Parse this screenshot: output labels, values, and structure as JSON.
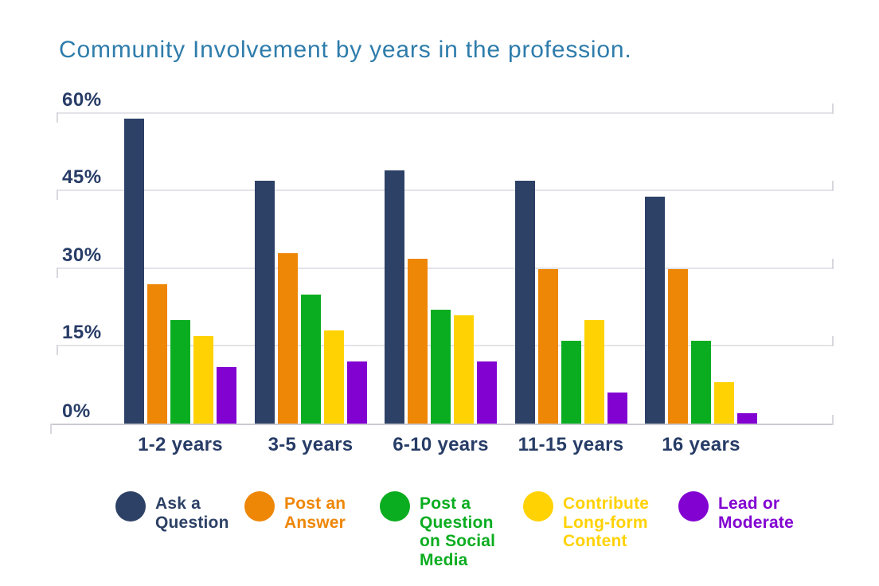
{
  "chart_data": {
    "type": "bar",
    "title": "Community Involvement by years in the profession.",
    "categories": [
      "1-2 years",
      "3-5 years",
      "6-10 years",
      "11-15 years",
      "16 years"
    ],
    "series": [
      {
        "name": "Ask a Question",
        "color": "#2d4166",
        "values": [
          59,
          47,
          49,
          47,
          44
        ]
      },
      {
        "name": "Post an Answer",
        "color": "#ee8606",
        "values": [
          27,
          33,
          32,
          30,
          30
        ]
      },
      {
        "name": "Post a Question on Social Media",
        "color": "#0bad20",
        "values": [
          20,
          25,
          22,
          16,
          16
        ]
      },
      {
        "name": "Contribute Long-form Content",
        "color": "#ffd204",
        "values": [
          17,
          18,
          21,
          20,
          8
        ]
      },
      {
        "name": "Lead or Moderate",
        "color": "#8202d1",
        "values": [
          11,
          12,
          12,
          6,
          2
        ]
      }
    ],
    "ylabel": "",
    "xlabel": "",
    "ylim": [
      0,
      60
    ],
    "y_ticks": [
      "60%",
      "45%",
      "30%",
      "15%",
      "0%"
    ],
    "y_tick_values": [
      60,
      45,
      30,
      15,
      0
    ],
    "grid": true,
    "legend_position": "bottom"
  },
  "legend": {
    "items": [
      {
        "label": "Ask a\nQuestion",
        "color": "#2d4166"
      },
      {
        "label": "Post an\nAnswer",
        "color": "#ee8606"
      },
      {
        "label": "Post a\nQuestion\non Social\nMedia",
        "color": "#0bad20"
      },
      {
        "label": "Contribute\nLong-form\nContent",
        "color": "#ffd204"
      },
      {
        "label": "Lead or\nModerate",
        "color": "#8202d1"
      }
    ]
  },
  "colors": {
    "title": "#2e7cab",
    "axis_text": "#273c66",
    "gridline": "#e3e3e8",
    "axis_line": "#cbcbd2",
    "background": "#ffffff"
  }
}
